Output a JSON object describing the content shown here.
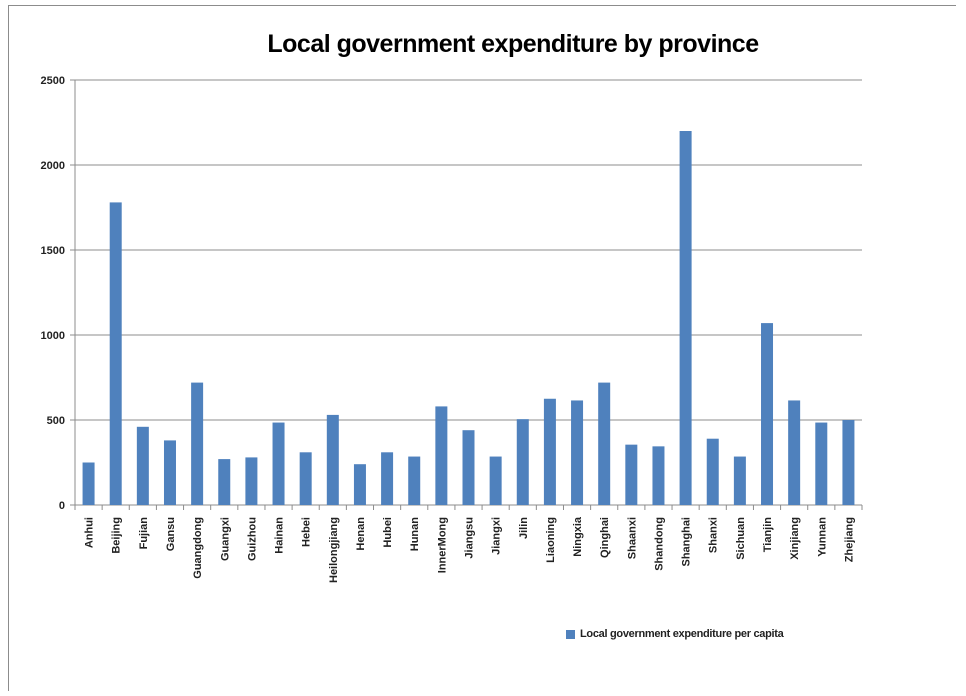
{
  "chart_data": {
    "type": "bar",
    "title": "Local government expenditure by province",
    "categories": [
      "Anhui",
      "Beijing",
      "Fujian",
      "Gansu",
      "Guangdong",
      "Guangxi",
      "Guizhou",
      "Hainan",
      "Hebei",
      "Heilongjiang",
      "Henan",
      "Hubei",
      "Hunan",
      "InnerMong",
      "Jiangsu",
      "Jiangxi",
      "Jilin",
      "Liaoning",
      "Ningxia",
      "Qinghai",
      "Shaanxi",
      "Shandong",
      "Shanghai",
      "Shanxi",
      "Sichuan",
      "Tianjin",
      "Xinjiang",
      "Yunnan",
      "Zhejiang"
    ],
    "series": [
      {
        "name": "Local government expenditure per capita",
        "values": [
          250,
          1780,
          460,
          380,
          720,
          270,
          280,
          485,
          310,
          530,
          240,
          310,
          285,
          580,
          440,
          285,
          505,
          625,
          615,
          720,
          355,
          345,
          2200,
          390,
          285,
          1070,
          615,
          485,
          500
        ]
      }
    ],
    "ylim": [
      0,
      2500
    ],
    "yticks": [
      0,
      500,
      1000,
      1500,
      2000,
      2500
    ],
    "ytick_labels": [
      "0",
      "500",
      "1000",
      "1500",
      "2000",
      "2500"
    ],
    "grid": true,
    "legend_position": "bottom-right",
    "color": "#4f81bd"
  }
}
